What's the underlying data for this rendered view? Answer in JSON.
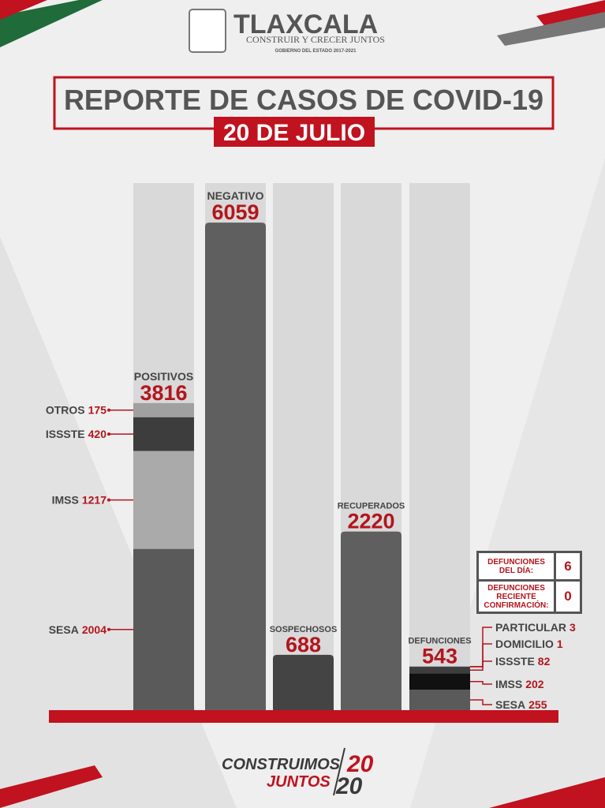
{
  "header": {
    "brand": "TLAXCALA",
    "slogan": "CONSTRUIR Y CRECER JUNTOS",
    "government": "GOBIERNO DEL ESTADO 2017-2021",
    "title": "REPORTE DE CASOS DE COVID-19",
    "date": "20 DE JULIO"
  },
  "chart_data": {
    "type": "bar",
    "ylim": [
      0,
      6550
    ],
    "bars": [
      {
        "name": "POSITIVOS",
        "value": 3816,
        "segments": [
          {
            "name": "SESA",
            "value": 2004,
            "color": "#5a5a5a"
          },
          {
            "name": "IMSS",
            "value": 1217,
            "color": "#aaaaaa"
          },
          {
            "name": "ISSSTE",
            "value": 420,
            "color": "#3d3d3d"
          },
          {
            "name": "OTROS",
            "value": 175,
            "color": "#a0a0a0"
          }
        ]
      },
      {
        "name": "NEGATIVO",
        "value": 6059,
        "color": "#5f5f5f"
      },
      {
        "name": "SOSPECHOSOS",
        "value": 688,
        "color": "#444444"
      },
      {
        "name": "RECUPERADOS",
        "value": 2220,
        "color": "#5f5f5f"
      },
      {
        "name": "DEFUNCIONES",
        "value": 543,
        "segments": [
          {
            "name": "SESA",
            "value": 255,
            "color": "#5a5a5a"
          },
          {
            "name": "IMSS",
            "value": 202,
            "color": "#111111"
          },
          {
            "name": "ISSSTE",
            "value": 82,
            "color": "#3d3d3d"
          },
          {
            "name": "DOMICILIO",
            "value": 1,
            "color": "#777777"
          },
          {
            "name": "PARTICULAR",
            "value": 3,
            "color": "#666666"
          }
        ]
      }
    ]
  },
  "summary": {
    "rows": [
      {
        "label": "DEFUNCIONES DEL DÍA:",
        "value": 6
      },
      {
        "label": "DEFUNCIONES RECIENTE CONFIRMACIÓN:",
        "value": 0
      }
    ]
  },
  "footer": {
    "line1": "CONSTRUIMOS",
    "line2": "JUNTOS",
    "year_top": "20",
    "year_bottom": "20"
  }
}
